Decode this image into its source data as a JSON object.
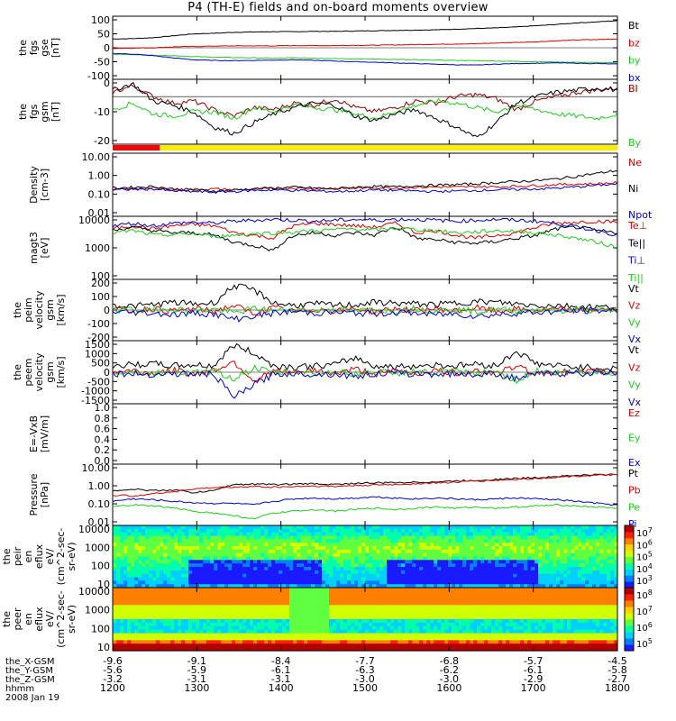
{
  "title": "P4 (TH-E) fields and on-board moments overview",
  "colors": {
    "black": "#000000",
    "red": "#e00000",
    "green": "#22cc22",
    "blue": "#0000cc",
    "darkred": "#8b0000",
    "yellow": "#ffee00",
    "bar_red": "#ff0000"
  },
  "chart_data": [
    {
      "type": "line",
      "id": "fgs_gse",
      "ylabel": "the fgs gse [nT]",
      "yticks": [
        "100",
        "50",
        "0",
        "-50",
        "-100"
      ],
      "ylim": [
        -100,
        100
      ],
      "series": [
        {
          "name": "Bt",
          "color": "black",
          "values": [
            28,
            29,
            32,
            38,
            44,
            46,
            49,
            50,
            51,
            51,
            52,
            52,
            53,
            54,
            55,
            56,
            57,
            59,
            61,
            63,
            66,
            70,
            74,
            79,
            82,
            86
          ]
        },
        {
          "name": "bz",
          "color": "red",
          "values": [
            -2,
            -1,
            0,
            3,
            4,
            5,
            6,
            6,
            6,
            7,
            7,
            7,
            8,
            8,
            9,
            10,
            11,
            12,
            13,
            15,
            17,
            19,
            22,
            25,
            26,
            28
          ]
        },
        {
          "name": "by",
          "color": "green",
          "values": [
            -20,
            -22,
            -24,
            -25,
            -28,
            -30,
            -31,
            -32,
            -33,
            -32,
            -33,
            -34,
            -35,
            -36,
            -37,
            -38,
            -39,
            -40,
            -41,
            -42,
            -43,
            -44,
            -45,
            -46,
            -47,
            -48
          ]
        },
        {
          "name": "bx",
          "color": "blue",
          "values": [
            -18,
            -20,
            -25,
            -32,
            -38,
            -40,
            -41,
            -40,
            -39,
            -38,
            -40,
            -42,
            -44,
            -46,
            -48,
            -50,
            -52,
            -54,
            -55,
            -52,
            -50,
            -49,
            -48,
            -49,
            -50,
            -52
          ]
        }
      ]
    },
    {
      "type": "line",
      "id": "fgs_gsm",
      "ylabel": "the fgs gsm [nT]",
      "yticks": [
        "0",
        "-10",
        "-20"
      ],
      "ylim": [
        -22,
        8
      ],
      "series": [
        {
          "name": "BI",
          "color": "darkred",
          "values": [
            2,
            5,
            0,
            -3,
            -2,
            -6,
            -9,
            -5,
            -6,
            -3,
            -4,
            -1,
            -5,
            -7,
            -5,
            -2,
            -3,
            0,
            1,
            -1,
            -6,
            -2,
            0,
            2,
            3,
            4
          ]
        },
        {
          "name": "By",
          "color": "green",
          "values": [
            -6,
            -3,
            -8,
            -9,
            -7,
            -7,
            -10,
            -5,
            -7,
            -4,
            -5,
            -6,
            -8,
            -10,
            -7,
            -4,
            -2,
            -3,
            -5,
            -7,
            -4,
            -6,
            -8,
            -9,
            -10,
            -8
          ]
        },
        {
          "name": "",
          "color": "black",
          "values": [
            3,
            6,
            -2,
            -4,
            -7,
            -14,
            -17,
            -12,
            -8,
            -5,
            -3,
            -4,
            -9,
            -11,
            -8,
            -6,
            -10,
            -14,
            -19,
            -12,
            -3,
            0,
            2,
            3,
            4,
            3
          ]
        }
      ]
    },
    {
      "type": "line",
      "id": "density",
      "ylabel": "Density [cm-3]",
      "yticks": [
        "10.00",
        "1.00",
        "0.10",
        "0.01"
      ],
      "scale": "log",
      "ylim": [
        0.01,
        10
      ],
      "series": [
        {
          "name": "Ne",
          "color": "red",
          "values": [
            0.18,
            0.2,
            0.22,
            0.18,
            0.19,
            0.2,
            0.18,
            0.2,
            0.21,
            0.22,
            0.2,
            0.21,
            0.22,
            0.23,
            0.22,
            0.24,
            0.25,
            0.24,
            0.26,
            0.25,
            0.27,
            0.29,
            0.32,
            0.34,
            0.35,
            0.4
          ]
        },
        {
          "name": "Ni",
          "color": "black",
          "values": [
            0.22,
            0.24,
            0.26,
            0.2,
            0.18,
            0.16,
            0.18,
            0.2,
            0.22,
            0.24,
            0.22,
            0.2,
            0.24,
            0.26,
            0.25,
            0.28,
            0.3,
            0.32,
            0.35,
            0.4,
            0.45,
            0.5,
            0.6,
            0.8,
            1.1,
            1.5
          ]
        },
        {
          "name": "Npot",
          "color": "blue",
          "values": [
            0.18,
            0.19,
            0.2,
            0.16,
            0.15,
            0.14,
            0.15,
            0.17,
            0.18,
            0.17,
            0.16,
            0.15,
            0.16,
            0.18,
            0.17,
            0.16,
            0.15,
            0.16,
            0.17,
            0.18,
            0.19,
            0.2,
            0.22,
            0.25,
            0.3,
            0.35
          ]
        }
      ]
    },
    {
      "type": "line",
      "id": "temperature",
      "ylabel": "magt3 [eV]",
      "yticks": [
        "10000",
        "1000",
        "100"
      ],
      "scale": "log",
      "ylim": [
        100,
        10000
      ],
      "series": [
        {
          "name": "Te⊥",
          "color": "red",
          "values": [
            4000,
            5000,
            4000,
            5000,
            5500,
            5000,
            3000,
            2500,
            2000,
            5000,
            6000,
            5500,
            5000,
            4500,
            6000,
            3000,
            3500,
            2500,
            2000,
            2500,
            3000,
            4500,
            6000,
            6500,
            7000,
            6500
          ]
        },
        {
          "name": "Te||",
          "color": "black",
          "values": [
            3500,
            4500,
            3500,
            3000,
            3000,
            2500,
            1500,
            1200,
            800,
            2500,
            3000,
            2500,
            3000,
            2500,
            4500,
            2000,
            1800,
            1500,
            1400,
            1600,
            2000,
            2500,
            4000,
            4500,
            3500,
            3000
          ]
        },
        {
          "name": "Ti⊥",
          "color": "blue",
          "values": [
            5000,
            6000,
            5000,
            6000,
            6500,
            6000,
            7000,
            7500,
            8000,
            7500,
            7000,
            7500,
            8000,
            7500,
            8000,
            8000,
            7500,
            7000,
            7500,
            8000,
            7500,
            7000,
            6000,
            4500,
            3500,
            2500
          ]
        },
        {
          "name": "Ti||",
          "color": "green",
          "values": [
            3000,
            3500,
            2500,
            2600,
            2800,
            2300,
            2500,
            2800,
            3000,
            3200,
            3500,
            3800,
            4000,
            3600,
            4200,
            3800,
            3500,
            3000,
            3200,
            3500,
            3400,
            3000,
            2500,
            2000,
            1500,
            1000
          ]
        }
      ]
    },
    {
      "type": "line",
      "id": "peim_velocity",
      "ylabel": "the peim velocity gsm [km/s]",
      "yticks": [
        "200",
        "100",
        "0",
        "-100",
        "-200"
      ],
      "ylim": [
        -200,
        200
      ],
      "series": [
        {
          "name": "Vt",
          "color": "black",
          "values": [
            30,
            25,
            35,
            50,
            40,
            45,
            160,
            130,
            45,
            30,
            40,
            30,
            35,
            50,
            45,
            40,
            35,
            45,
            55,
            50,
            40,
            30,
            30,
            25,
            20,
            15
          ]
        },
        {
          "name": "Vz",
          "color": "red",
          "values": [
            5,
            -5,
            10,
            -10,
            8,
            -8,
            30,
            -25,
            15,
            -10,
            5,
            -5,
            10,
            -10,
            8,
            -5,
            10,
            -8,
            15,
            -10,
            5,
            -5,
            5,
            -3,
            3,
            0
          ]
        },
        {
          "name": "Vy",
          "color": "green",
          "values": [
            0,
            5,
            -5,
            10,
            -10,
            5,
            -20,
            10,
            -5,
            5,
            -5,
            10,
            -10,
            5,
            -5,
            10,
            -5,
            5,
            -10,
            5,
            -5,
            5,
            -5,
            3,
            -3,
            0
          ]
        },
        {
          "name": "Vx",
          "color": "blue",
          "values": [
            -10,
            -15,
            -20,
            -30,
            -20,
            -25,
            -60,
            -40,
            -20,
            -10,
            -20,
            -15,
            -20,
            -25,
            -15,
            -20,
            -30,
            -25,
            -40,
            -30,
            -20,
            -15,
            -10,
            -5,
            -5,
            0
          ]
        }
      ]
    },
    {
      "type": "line",
      "id": "peem_velocity",
      "ylabel": "the peem velocity gsm [km/s]",
      "yticks": [
        "1500",
        "1000",
        "500",
        "0",
        "-500",
        "-1000",
        "-1500"
      ],
      "ylim": [
        -1500,
        1500
      ],
      "series": [
        {
          "name": "Vt",
          "color": "black",
          "values": [
            300,
            350,
            400,
            300,
            350,
            300,
            1300,
            900,
            300,
            250,
            300,
            350,
            700,
            300,
            250,
            300,
            350,
            300,
            400,
            300,
            1000,
            400,
            300,
            250,
            200,
            150
          ]
        },
        {
          "name": "Vz",
          "color": "red",
          "values": [
            0,
            80,
            -60,
            100,
            -80,
            90,
            500,
            -400,
            60,
            -50,
            80,
            -60,
            150,
            -80,
            60,
            -50,
            80,
            -60,
            100,
            -80,
            300,
            -100,
            50,
            -40,
            30,
            0
          ]
        },
        {
          "name": "Vy",
          "color": "green",
          "values": [
            -50,
            40,
            -80,
            30,
            -60,
            50,
            -300,
            200,
            -40,
            30,
            -60,
            50,
            -100,
            40,
            -50,
            40,
            -60,
            50,
            -80,
            60,
            -400,
            80,
            -40,
            30,
            -20,
            0
          ]
        },
        {
          "name": "Vx",
          "color": "blue",
          "values": [
            -60,
            -80,
            -100,
            -70,
            -90,
            -80,
            -1200,
            -600,
            -80,
            -60,
            -90,
            -80,
            -200,
            -70,
            -60,
            -80,
            -90,
            -70,
            -100,
            -80,
            -300,
            -100,
            -60,
            -50,
            -40,
            -20
          ]
        }
      ]
    },
    {
      "type": "line",
      "id": "efield",
      "ylabel": "E=-VxB [mV/m]",
      "yticks": [
        "1.0",
        "0.8",
        "0.6",
        "0.4",
        "0.2",
        "0.0"
      ],
      "ylim": [
        0,
        1
      ],
      "series": [
        {
          "name": "Ez",
          "color": "red",
          "values": []
        },
        {
          "name": "Ey",
          "color": "green",
          "values": []
        },
        {
          "name": "Ex",
          "color": "blue",
          "values": []
        }
      ]
    },
    {
      "type": "line",
      "id": "pressure",
      "ylabel": "Pressure [nPa]",
      "yticks": [
        "10.00",
        "1.00",
        "0.10",
        "0.01"
      ],
      "scale": "log",
      "ylim": [
        0.01,
        10
      ],
      "series": [
        {
          "name": "Pt",
          "color": "black",
          "values": [
            0.5,
            0.6,
            0.5,
            0.55,
            0.4,
            0.5,
            1.0,
            1.05,
            1.0,
            1.05,
            1.1,
            1.0,
            1.15,
            1.2,
            1.25,
            1.3,
            1.35,
            1.5,
            1.6,
            1.8,
            2.0,
            2.2,
            2.5,
            2.8,
            3.0,
            3.2
          ]
        },
        {
          "name": "Pb",
          "color": "red",
          "values": [
            0.3,
            0.28,
            0.35,
            0.45,
            0.6,
            0.7,
            0.75,
            0.8,
            0.75,
            0.8,
            0.85,
            0.8,
            0.9,
            0.95,
            1.0,
            1.1,
            1.2,
            1.3,
            1.5,
            1.6,
            1.8,
            2.0,
            2.3,
            2.6,
            2.8,
            3.0
          ]
        },
        {
          "name": "Pe",
          "color": "green",
          "values": [
            0.08,
            0.1,
            0.09,
            0.07,
            0.05,
            0.04,
            0.03,
            0.02,
            0.04,
            0.05,
            0.06,
            0.05,
            0.06,
            0.07,
            0.06,
            0.07,
            0.08,
            0.07,
            0.08,
            0.07,
            0.08,
            0.09,
            0.1,
            0.09,
            0.08,
            0.07
          ]
        },
        {
          "name": "Pi",
          "color": "blue",
          "values": [
            0.15,
            0.2,
            0.18,
            0.15,
            0.13,
            0.12,
            0.12,
            0.1,
            0.15,
            0.2,
            0.22,
            0.2,
            0.22,
            0.25,
            0.22,
            0.2,
            0.22,
            0.2,
            0.18,
            0.2,
            0.22,
            0.2,
            0.18,
            0.15,
            0.12,
            0.1
          ]
        }
      ]
    },
    {
      "type": "heatmap",
      "id": "peir_eflux",
      "ylabel": "the peir en eflux eV/ (cm^2-sec- sr-eV)",
      "yticks": [
        "10000",
        "1000",
        "100",
        "10"
      ],
      "colorbar_ticks": [
        "10^7",
        "10^6",
        "10^5",
        "10^4",
        "10^3"
      ]
    },
    {
      "type": "heatmap",
      "id": "peer_eflux",
      "ylabel": "the peer en eflux eV/ (cm^2-sec- sr-eV)",
      "yticks": [
        "10000",
        "1000",
        "100",
        "10"
      ],
      "colorbar_ticks": [
        "10^8",
        "10^7",
        "10^6",
        "10^5"
      ]
    }
  ],
  "xaxis": {
    "rows": [
      {
        "label": "the_X-GSM",
        "values": [
          "-9.6",
          "-9.1",
          "-8.4",
          "-7.7",
          "-6.8",
          "-5.7",
          "-4.5"
        ]
      },
      {
        "label": "the_Y-GSM",
        "values": [
          "-5.6",
          "-5.9",
          "-6.1",
          "-6.3",
          "-6.2",
          "-6.1",
          "-5.8"
        ]
      },
      {
        "label": "the_Z-GSM",
        "values": [
          "-3.2",
          "-3.1",
          "-3.1",
          "-3.0",
          "-3.0",
          "-2.9",
          "-2.7"
        ]
      },
      {
        "label": "hhmm",
        "values": [
          "1200",
          "1300",
          "1400",
          "1500",
          "1600",
          "1700",
          "1800"
        ]
      }
    ],
    "date": "2008 Jan 19"
  }
}
